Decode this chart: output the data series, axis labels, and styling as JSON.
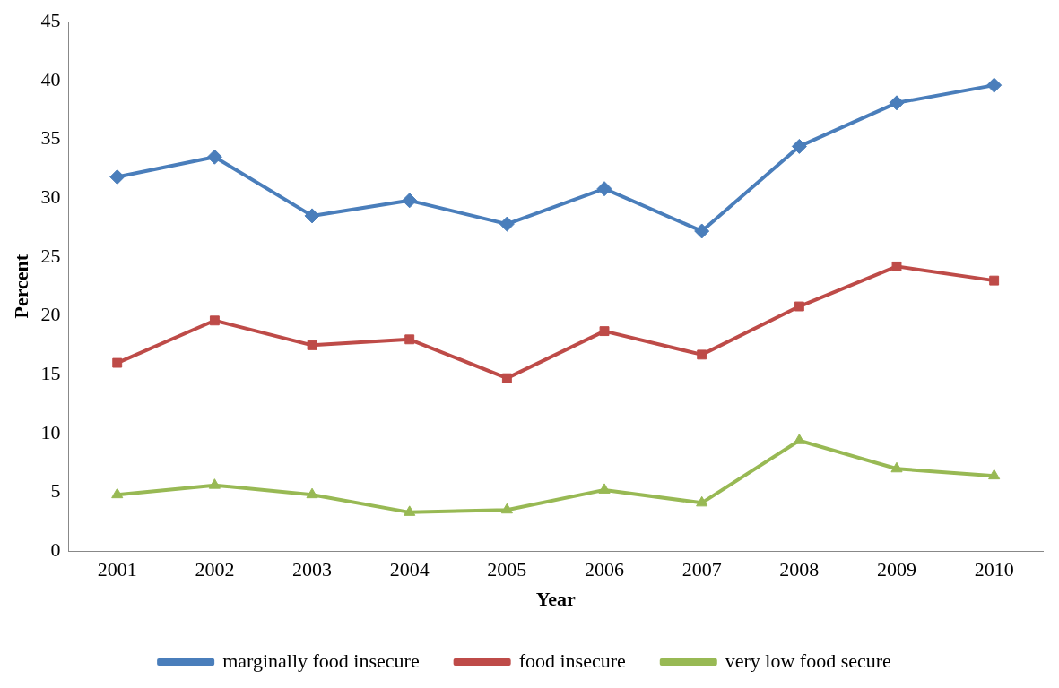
{
  "chart_data": {
    "type": "line",
    "xlabel": "Year",
    "ylabel": "Percent",
    "categories": [
      "2001",
      "2002",
      "2003",
      "2004",
      "2005",
      "2006",
      "2007",
      "2008",
      "2009",
      "2010"
    ],
    "series": [
      {
        "name": "marginally food insecure",
        "color": "#4a7ebb",
        "marker": "diamond",
        "values": [
          31.8,
          33.5,
          28.5,
          29.8,
          27.8,
          30.8,
          27.2,
          34.4,
          38.1,
          39.6
        ]
      },
      {
        "name": "food insecure",
        "color": "#be4b48",
        "marker": "square",
        "values": [
          16.0,
          19.6,
          17.5,
          18.0,
          14.7,
          18.7,
          16.7,
          20.8,
          24.2,
          23.0
        ]
      },
      {
        "name": "very low food secure",
        "color": "#98b954",
        "marker": "triangle",
        "values": [
          4.8,
          5.6,
          4.8,
          3.3,
          3.5,
          5.2,
          4.1,
          9.4,
          7.0,
          6.4
        ]
      }
    ],
    "ylim": [
      0,
      45
    ],
    "yticks": [
      0,
      5,
      10,
      15,
      20,
      25,
      30,
      35,
      40,
      45
    ],
    "grid": false,
    "legend": "bottom",
    "line_style": "solid"
  }
}
